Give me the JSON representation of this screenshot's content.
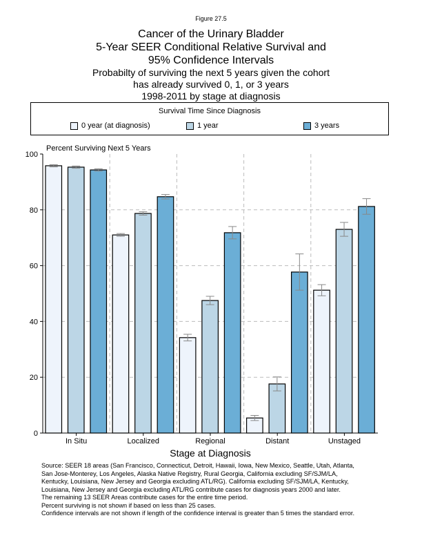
{
  "figure_label": "Figure 27.5",
  "title_lines": [
    "Cancer of the Urinary Bladder",
    "5-Year SEER Conditional Relative Survival and",
    "95% Confidence Intervals"
  ],
  "subtitle_lines": [
    "Probabilty of surviving the next 5 years given the cohort",
    "has already survived 0, 1, or 3 years",
    "1998-2011 by stage at diagnosis"
  ],
  "legend": {
    "title": "Survival Time Since Diagnosis",
    "items": [
      {
        "label": "0 year (at diagnosis)",
        "color": "#eef4fc"
      },
      {
        "label": "1 year",
        "color": "#bcd6e6"
      },
      {
        "label": "3 years",
        "color": "#6baed6"
      }
    ]
  },
  "chart_data": {
    "type": "bar",
    "title": "Cancer of the Urinary Bladder",
    "xlabel": "Stage at Diagnosis",
    "ylabel": "Percent Surviving Next 5 Years",
    "ylim": [
      0,
      100
    ],
    "yticks": [
      0,
      20,
      40,
      60,
      80,
      100
    ],
    "grid": true,
    "legend_position": "top",
    "categories": [
      "In Situ",
      "Localized",
      "Regional",
      "Distant",
      "Unstaged"
    ],
    "series": [
      {
        "name": "0 year (at diagnosis)",
        "values": [
          95.8,
          71.0,
          34.2,
          5.4,
          51.2
        ],
        "ci": [
          0.4,
          0.5,
          1.2,
          0.9,
          2.0
        ]
      },
      {
        "name": "1 year",
        "values": [
          95.3,
          78.7,
          47.5,
          17.6,
          73.0
        ],
        "ci": [
          0.4,
          0.6,
          1.5,
          2.5,
          2.5
        ]
      },
      {
        "name": "3 years",
        "values": [
          94.3,
          84.7,
          71.8,
          57.7,
          81.2
        ],
        "ci": [
          0.4,
          0.8,
          2.2,
          6.5,
          2.8
        ]
      }
    ]
  },
  "source_lines": [
    "Source:  SEER 18 areas (San Francisco, Connecticut, Detroit, Hawaii, Iowa, New Mexico, Seattle, Utah, Atlanta,",
    "San Jose-Monterey, Los Angeles, Alaska Native Registry, Rural Georgia, California excluding SF/SJM/LA,",
    "Kentucky, Louisiana, New Jersey and Georgia excluding ATL/RG). California excluding SF/SJM/LA, Kentucky,",
    "Louisiana, New Jersey and Georgia excluding ATL/RG contribute cases for diagnosis years 2000 and later.",
    "The remaining 13 SEER Areas contribute cases for the entire time period.",
    "Percent surviving is not shown if based on less than 25 cases.",
    "Confidence intervals are not shown if length of the confidence interval is greater than 5 times the standard error."
  ]
}
